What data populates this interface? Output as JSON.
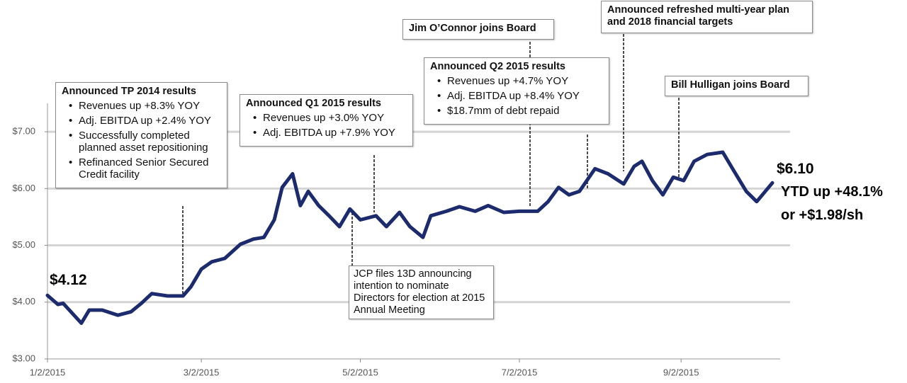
{
  "chart_data": {
    "type": "line",
    "x": [
      "1/2/2015",
      "1/6/2015",
      "1/8/2015",
      "1/11/2015",
      "1/15/2015",
      "1/18/2015",
      "1/23/2015",
      "1/29/2015",
      "2/3/2015",
      "2/7/2015",
      "2/11/2015",
      "2/17/2015",
      "2/23/2015",
      "2/26/2015",
      "3/2/2015",
      "3/6/2015",
      "3/11/2015",
      "3/17/2015",
      "3/22/2015",
      "3/26/2015",
      "3/30/2015",
      "4/2/2015",
      "4/6/2015",
      "4/9/2015",
      "4/12/2015",
      "4/16/2015",
      "4/20/2015",
      "4/24/2015",
      "4/28/2015",
      "5/2/2015",
      "5/8/2015",
      "5/12/2015",
      "5/17/2015",
      "5/21/2015",
      "5/26/2015",
      "5/29/2015",
      "6/4/2015",
      "6/9/2015",
      "6/15/2015",
      "6/20/2015",
      "6/26/2015",
      "7/2/2015",
      "7/9/2015",
      "7/13/2015",
      "7/17/2015",
      "7/21/2015",
      "7/25/2015",
      "7/31/2015",
      "8/5/2015",
      "8/11/2015",
      "8/15/2015",
      "8/18/2015",
      "8/22/2015",
      "8/26/2015",
      "8/30/2015",
      "9/3/2015",
      "9/7/2015",
      "9/12/2015",
      "9/18/2015",
      "9/22/2015",
      "9/27/2015",
      "10/1/2015",
      "10/7/2015"
    ],
    "values": [
      4.12,
      3.96,
      3.98,
      3.83,
      3.63,
      3.86,
      3.86,
      3.77,
      3.83,
      3.98,
      4.15,
      4.11,
      4.11,
      4.27,
      4.58,
      4.71,
      4.77,
      5.02,
      5.11,
      5.14,
      5.45,
      6.02,
      6.26,
      5.7,
      5.95,
      5.7,
      5.52,
      5.33,
      5.64,
      5.45,
      5.52,
      5.33,
      5.58,
      5.33,
      5.14,
      5.52,
      5.6,
      5.68,
      5.6,
      5.7,
      5.58,
      5.6,
      5.6,
      5.77,
      6.02,
      5.89,
      5.95,
      6.35,
      6.26,
      6.08,
      6.39,
      6.48,
      6.14,
      5.89,
      6.2,
      6.14,
      6.48,
      6.6,
      6.64,
      6.33,
      5.95,
      5.77,
      6.1
    ],
    "color": "#1c2b6e",
    "xlim": [
      "1/2/2015",
      "10/10/2015"
    ],
    "xticks": [
      "1/2/2015",
      "3/2/2015",
      "5/2/2015",
      "7/2/2015",
      "9/2/2015"
    ],
    "ylim": [
      3,
      7.5
    ],
    "yticks": [
      {
        "value": 3,
        "label": "$3.00"
      },
      {
        "value": 4,
        "label": "$4.00"
      },
      {
        "value": 5,
        "label": "$5.00"
      },
      {
        "value": 6,
        "label": "$6.00"
      },
      {
        "value": 7,
        "label": "$7.00"
      }
    ],
    "grid": true,
    "start_label": "$4.12",
    "end_label": "$6.10",
    "ytd_labels": [
      "YTD up +48.1%",
      "or +$1.98/sh"
    ],
    "annotations": [
      {
        "title": "Announced TP 2014 results",
        "bullets": [
          "Revenues up +8.3% YOY",
          "Adj. EBITDA up +2.4% YOY",
          "Successfully completed planned asset repositioning",
          "Refinanced Senior Secured Credit facility"
        ]
      },
      {
        "title": "Announced Q1 2015 results",
        "bullets": [
          "Revenues up +3.0% YOY",
          "Adj. EBITDA up +7.9% YOY"
        ]
      },
      {
        "text": "JCP files 13D announcing intention to nominate Directors for election at 2015 Annual Meeting"
      },
      {
        "title": "Jim O’Connor joins Board"
      },
      {
        "title": "Announced Q2 2015 results",
        "bullets": [
          "Revenues up +4.7% YOY",
          "Adj. EBITDA up +8.4% YOY",
          "$18.7mm of debt repaid"
        ]
      },
      {
        "title": "Announced refreshed multi-year plan and 2018 financial targets"
      },
      {
        "title": "Bill Hulligan joins Board"
      }
    ]
  }
}
